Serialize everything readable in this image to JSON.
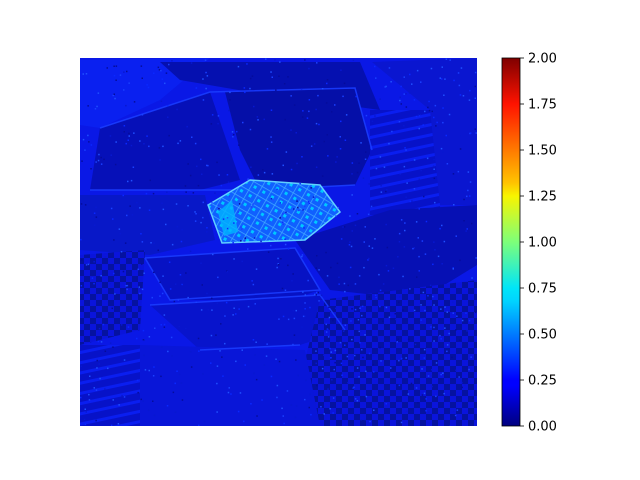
{
  "chart_data": {
    "type": "heatmap",
    "title": "",
    "xlabel": "",
    "ylabel": "",
    "axes_visible": false,
    "colormap": "jet",
    "colorbar": {
      "vmin": 0.0,
      "vmax": 2.0,
      "ticks": [
        0.0,
        0.25,
        0.5,
        0.75,
        1.0,
        1.25,
        1.5,
        1.75,
        2.0
      ],
      "tick_labels": [
        "0.00",
        "0.25",
        "0.50",
        "0.75",
        "1.00",
        "1.25",
        "1.50",
        "1.75",
        "2.00"
      ]
    },
    "value_summary": {
      "background_level": 0.12,
      "typical_range": [
        0.05,
        0.3
      ],
      "highlight_region": "hexagonal grate near center-left",
      "highlight_range": [
        0.3,
        0.7
      ]
    },
    "regions": [
      {
        "name": "upper-left hexagonal plate",
        "value": 0.1
      },
      {
        "name": "upper-center dark plate",
        "value": 0.06
      },
      {
        "name": "upper-right coil spring",
        "value": 0.15
      },
      {
        "name": "center grate",
        "value": 0.55
      },
      {
        "name": "lower-right textured plate",
        "value": 0.12
      },
      {
        "name": "lower-left coil spring",
        "value": 0.14
      },
      {
        "name": "lower-center plate",
        "value": 0.09
      }
    ]
  },
  "colors": {
    "background": "#ffffff",
    "low": "#00007f",
    "base": "#0a14e6",
    "mid": "#00c8ff",
    "high": "#7f0000"
  }
}
